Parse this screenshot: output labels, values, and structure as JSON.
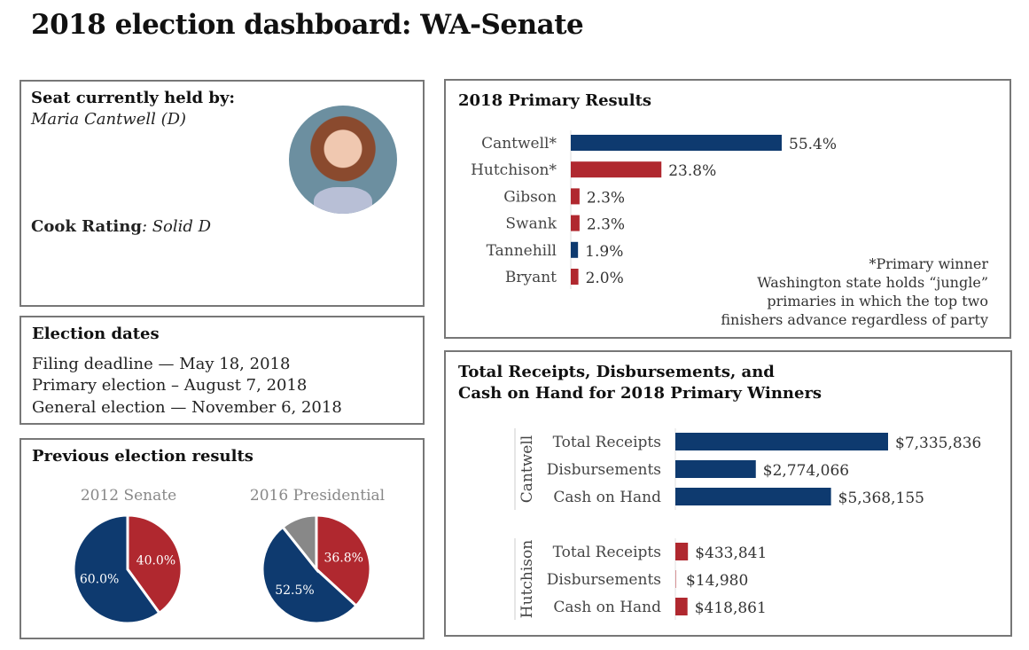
{
  "title": "2018 election dashboard: WA-Senate",
  "seat": {
    "label": "Seat currently held by:",
    "holder": "Maria Cantwell (D)",
    "cook_label": "Cook Rating",
    "cook_value": ": Solid D"
  },
  "dates": {
    "title": "Election dates",
    "items": [
      "Filing deadline — May 18, 2018",
      "Primary election – August 7, 2018",
      "General election — November 6, 2018"
    ]
  },
  "colors": {
    "dem": "#0e3a6f",
    "rep": "#b0282f",
    "other": "#888888"
  },
  "chart_data": [
    {
      "type": "bar",
      "title": "2018 Primary Results",
      "orientation": "horizontal",
      "categories": [
        "Cantwell*",
        "Hutchison*",
        "Gibson",
        "Swank",
        "Tannehill",
        "Bryant"
      ],
      "values": [
        55.4,
        23.8,
        2.3,
        2.3,
        1.9,
        2.0
      ],
      "labels": [
        "55.4%",
        "23.8%",
        "2.3%",
        "2.3%",
        "1.9%",
        "2.0%"
      ],
      "party": [
        "D",
        "R",
        "R",
        "R",
        "D",
        "R"
      ],
      "note": [
        "*Primary winner",
        "Washington state holds “jungle”",
        "primaries in which the top two",
        "finishers advance regardless of party"
      ]
    },
    {
      "type": "bar",
      "title": "Total Receipts, Disbursements, and",
      "title2": "Cash on Hand for 2018 Primary Winners",
      "orientation": "horizontal",
      "groups": [
        {
          "name": "Cantwell",
          "party": "D",
          "categories": [
            "Total Receipts",
            "Disbursements",
            "Cash on Hand"
          ],
          "values": [
            7335836,
            2774066,
            5368155
          ],
          "labels": [
            "$7,335,836",
            "$2,774,066",
            "$5,368,155"
          ]
        },
        {
          "name": "Hutchison",
          "party": "R",
          "categories": [
            "Total Receipts",
            "Disbursements",
            "Cash on Hand"
          ],
          "values": [
            433841,
            14980,
            418861
          ],
          "labels": [
            "$433,841",
            "$14,980",
            "$418,861"
          ]
        }
      ]
    },
    {
      "type": "pie",
      "panel_title": "Previous election results",
      "title": "2012 Senate",
      "slices": [
        {
          "party": "R",
          "value": 40.0,
          "label": "40.0%"
        },
        {
          "party": "D",
          "value": 60.0,
          "label": "60.0%"
        }
      ]
    },
    {
      "type": "pie",
      "title": "2016 Presidential",
      "slices": [
        {
          "party": "R",
          "value": 36.8,
          "label": "36.8%"
        },
        {
          "party": "D",
          "value": 52.5,
          "label": "52.5%"
        },
        {
          "party": "O",
          "value": 10.7,
          "label": ""
        }
      ]
    }
  ]
}
